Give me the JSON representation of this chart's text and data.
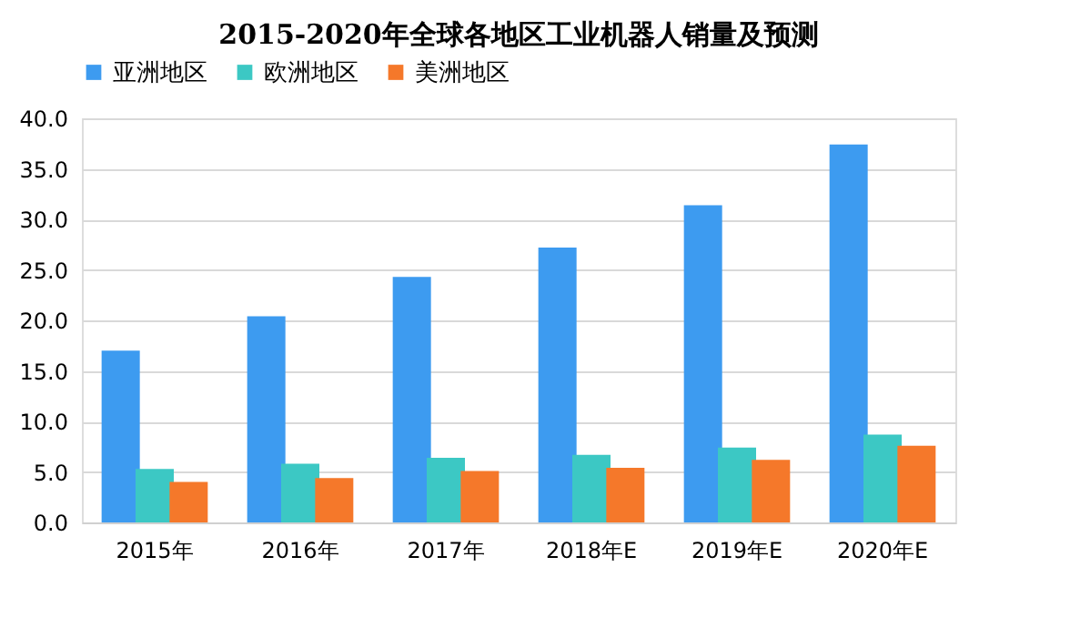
{
  "chart_data": {
    "type": "bar",
    "title": "2015-2020年全球各地区工业机器人销量及预测",
    "categories": [
      "2015年",
      "2016年",
      "2017年",
      "2018年E",
      "2019年E",
      "2020年E"
    ],
    "series": [
      {
        "name": "亚洲地区",
        "color": "#3d9bf0",
        "values": [
          17.0,
          20.4,
          24.3,
          27.2,
          31.4,
          37.4
        ]
      },
      {
        "name": "欧洲地区",
        "color": "#3cc8c4",
        "values": [
          5.3,
          5.8,
          6.4,
          6.7,
          7.4,
          8.7
        ]
      },
      {
        "name": "美洲地区",
        "color": "#f5782a",
        "values": [
          4.0,
          4.4,
          5.1,
          5.4,
          6.2,
          7.6
        ]
      }
    ],
    "ylim": [
      0,
      40
    ],
    "yticks": [
      {
        "value": 0,
        "label": "0.0"
      },
      {
        "value": 5,
        "label": "5.0"
      },
      {
        "value": 10,
        "label": "10.0"
      },
      {
        "value": 15,
        "label": "15.0"
      },
      {
        "value": 20,
        "label": "20.0"
      },
      {
        "value": 25,
        "label": "25.0"
      },
      {
        "value": 30,
        "label": "30.0"
      },
      {
        "value": 35,
        "label": "35.0"
      },
      {
        "value": 40,
        "label": "40.0"
      }
    ],
    "grid": "y",
    "legend": "top"
  }
}
